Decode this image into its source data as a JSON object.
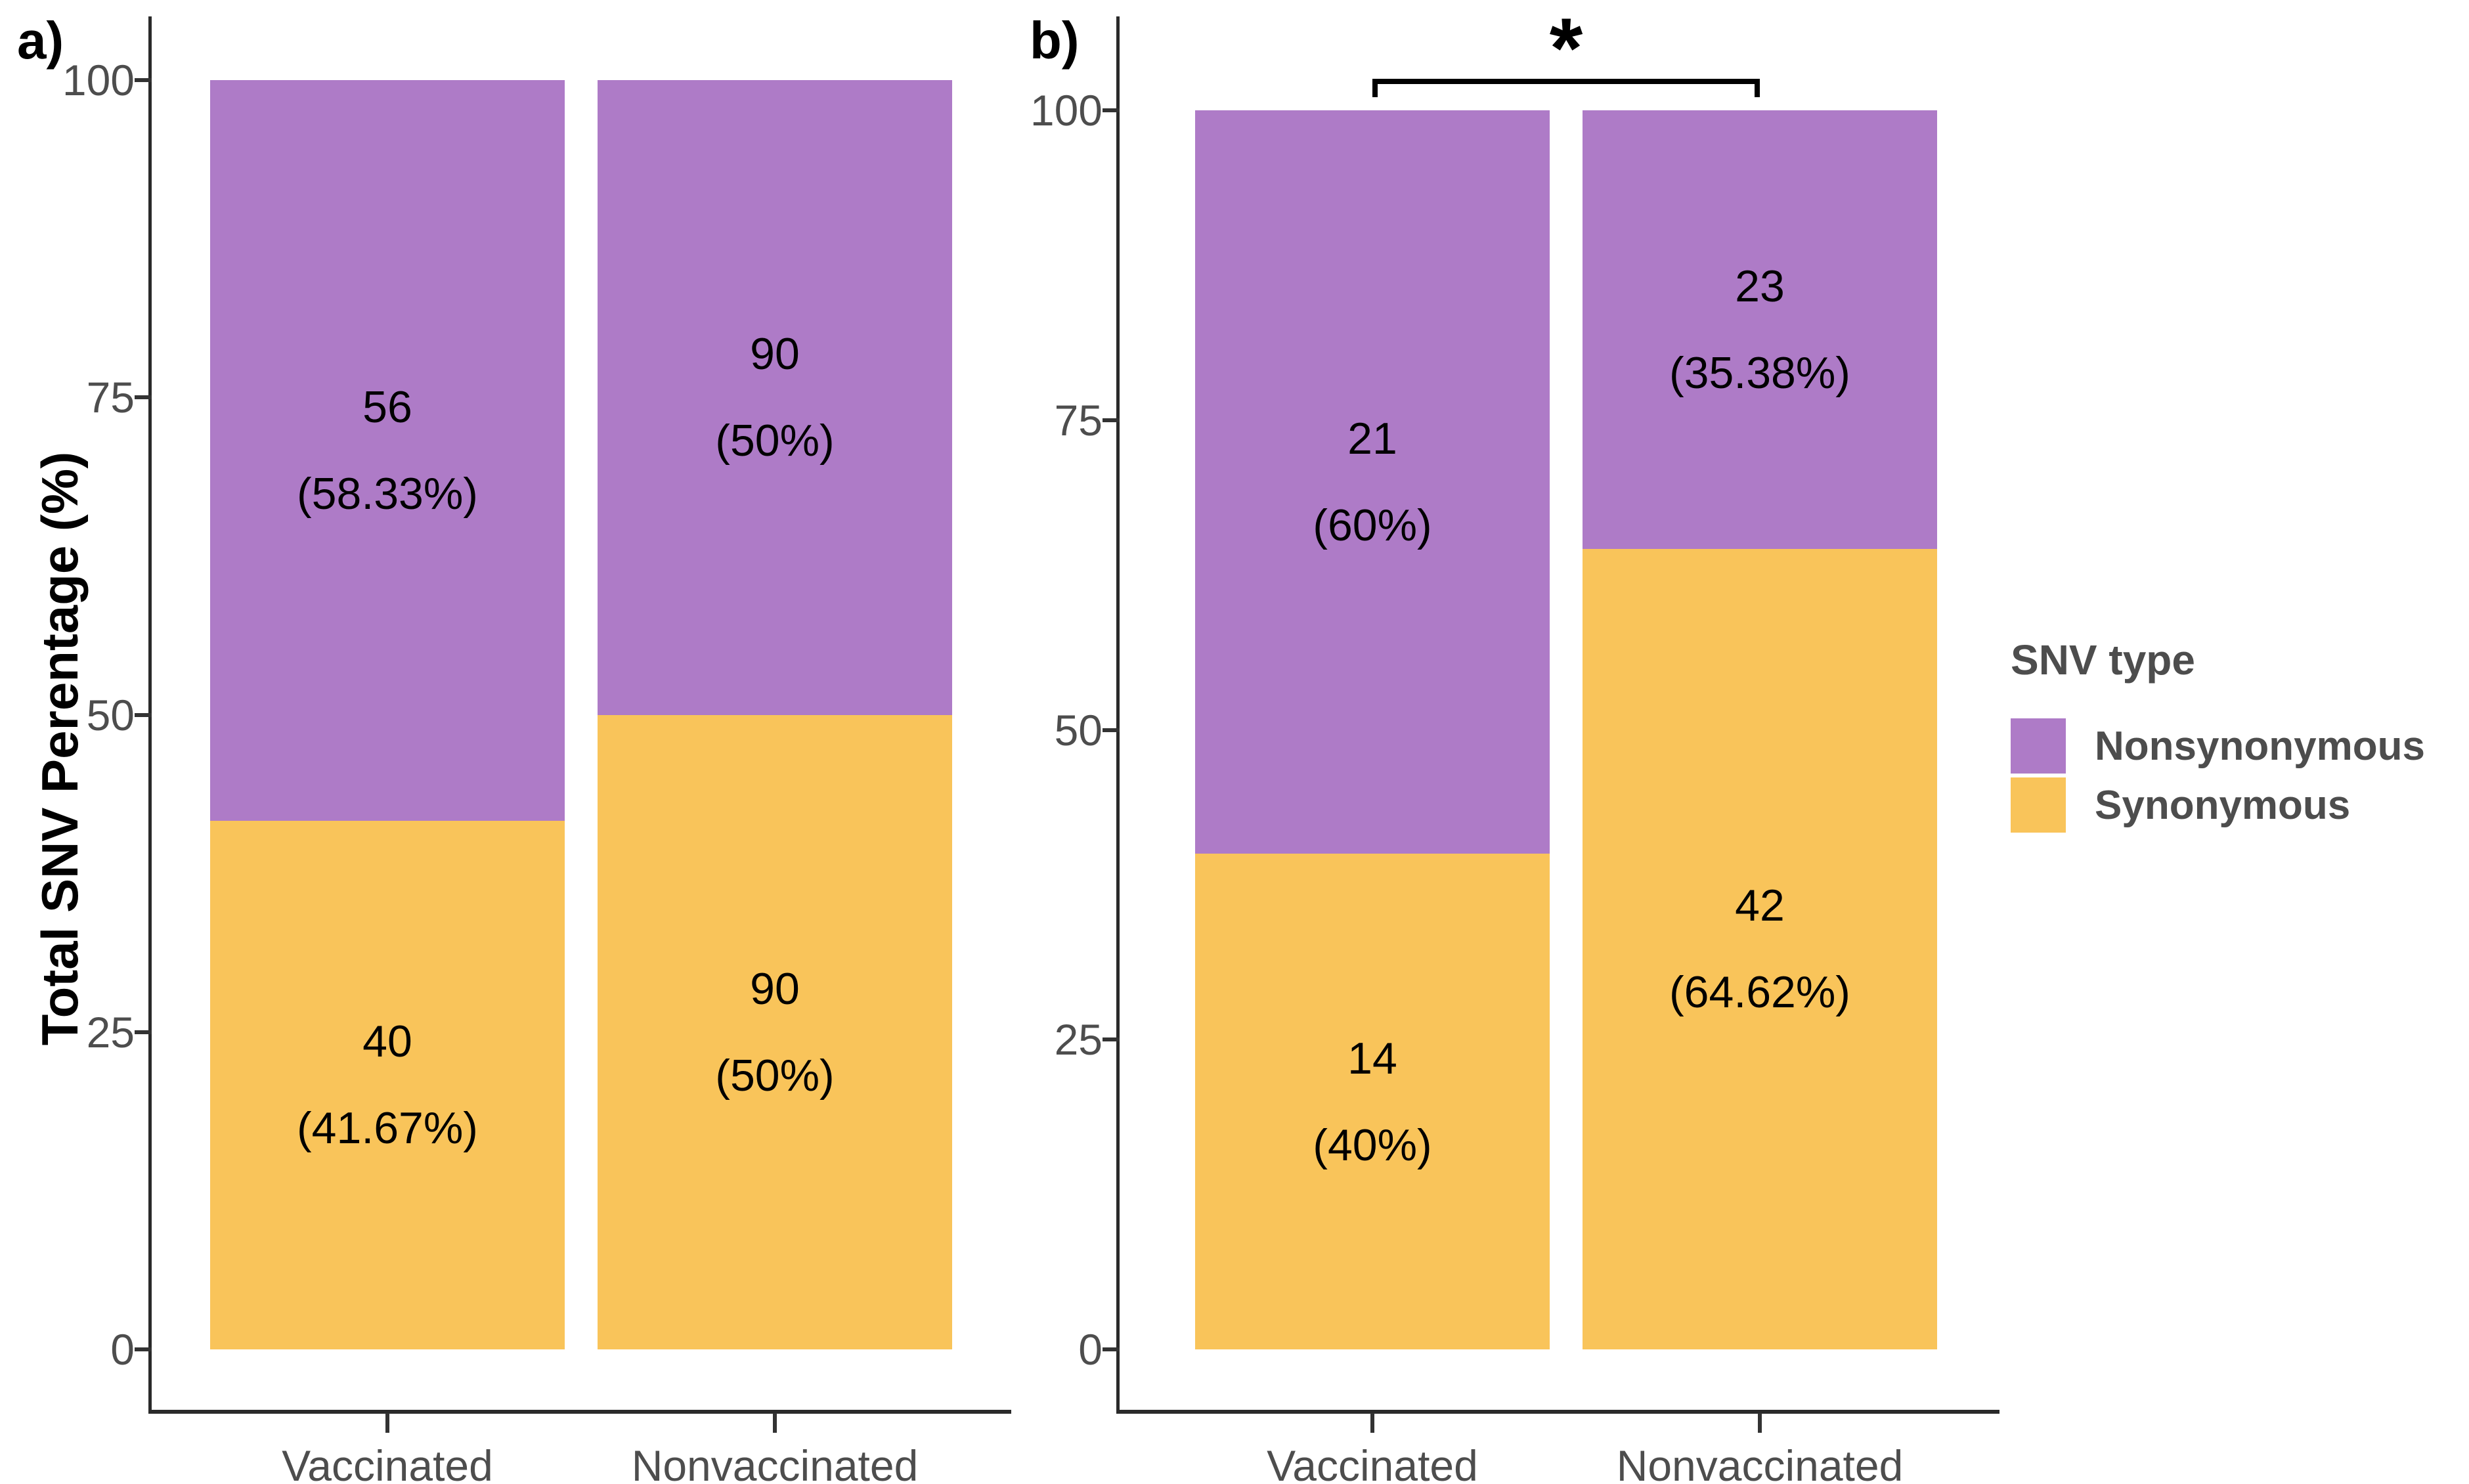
{
  "figure": {
    "background": "#ffffff",
    "panels": [
      {
        "letter": "a)"
      },
      {
        "letter": "b)"
      }
    ]
  },
  "y_axis": {
    "title": "Total SNV Perentage (%)",
    "ticks": [
      "0",
      "25",
      "50",
      "75",
      "100"
    ]
  },
  "x_axis": {
    "categories": [
      "Vaccinated",
      "Nonvaccinated"
    ]
  },
  "legend": {
    "title": "SNV type",
    "position": "right",
    "items": [
      {
        "label": "Nonsynonymous",
        "color": "#AE7BC7"
      },
      {
        "label": "Synonymous",
        "color": "#F9C45A"
      }
    ]
  },
  "significance": {
    "symbol": "*",
    "panel": "b)",
    "between": [
      "Vaccinated",
      "Nonvaccinated"
    ]
  },
  "colors": {
    "nonsynonymous": "#AE7BC7",
    "synonymous": "#F9C45A",
    "axis": "#2a2a2a",
    "tick_text": "#4d4d4d",
    "label_text": "#000000"
  },
  "chart_data": [
    {
      "type": "bar",
      "stacked": true,
      "panel": "a)",
      "categories": [
        "Vaccinated",
        "Nonvaccinated"
      ],
      "series": [
        {
          "name": "Nonsynonymous",
          "counts": [
            56,
            90
          ],
          "percents": [
            58.33,
            50
          ],
          "labels": [
            [
              "56",
              "(58.33%)"
            ],
            [
              "90",
              "(50%)"
            ]
          ]
        },
        {
          "name": "Synonymous",
          "counts": [
            40,
            90
          ],
          "percents": [
            41.67,
            50
          ],
          "labels": [
            [
              "40",
              "(41.67%)"
            ],
            [
              "90",
              "(50%)"
            ]
          ]
        }
      ],
      "xlabel": "",
      "ylabel": "Total SNV Perentage (%)",
      "ylim": [
        0,
        100
      ],
      "yticks": [
        0,
        25,
        50,
        75,
        100
      ],
      "grid": false,
      "legend_position": "right"
    },
    {
      "type": "bar",
      "stacked": true,
      "panel": "b)",
      "categories": [
        "Vaccinated",
        "Nonvaccinated"
      ],
      "series": [
        {
          "name": "Nonsynonymous",
          "counts": [
            21,
            23
          ],
          "percents": [
            60,
            35.38
          ],
          "labels": [
            [
              "21",
              "(60%)"
            ],
            [
              "23",
              "(35.38%)"
            ]
          ]
        },
        {
          "name": "Synonymous",
          "counts": [
            14,
            42
          ],
          "percents": [
            40,
            64.62
          ],
          "labels": [
            [
              "14",
              "(40%)"
            ],
            [
              "42",
              "(64.62%)"
            ]
          ]
        }
      ],
      "xlabel": "",
      "ylabel": "Total SNV Perentage (%)",
      "ylim": [
        0,
        100
      ],
      "yticks": [
        0,
        25,
        50,
        75,
        100
      ],
      "grid": false,
      "annotation": {
        "type": "significance-bracket",
        "symbol": "*",
        "between": [
          "Vaccinated",
          "Nonvaccinated"
        ]
      }
    }
  ]
}
